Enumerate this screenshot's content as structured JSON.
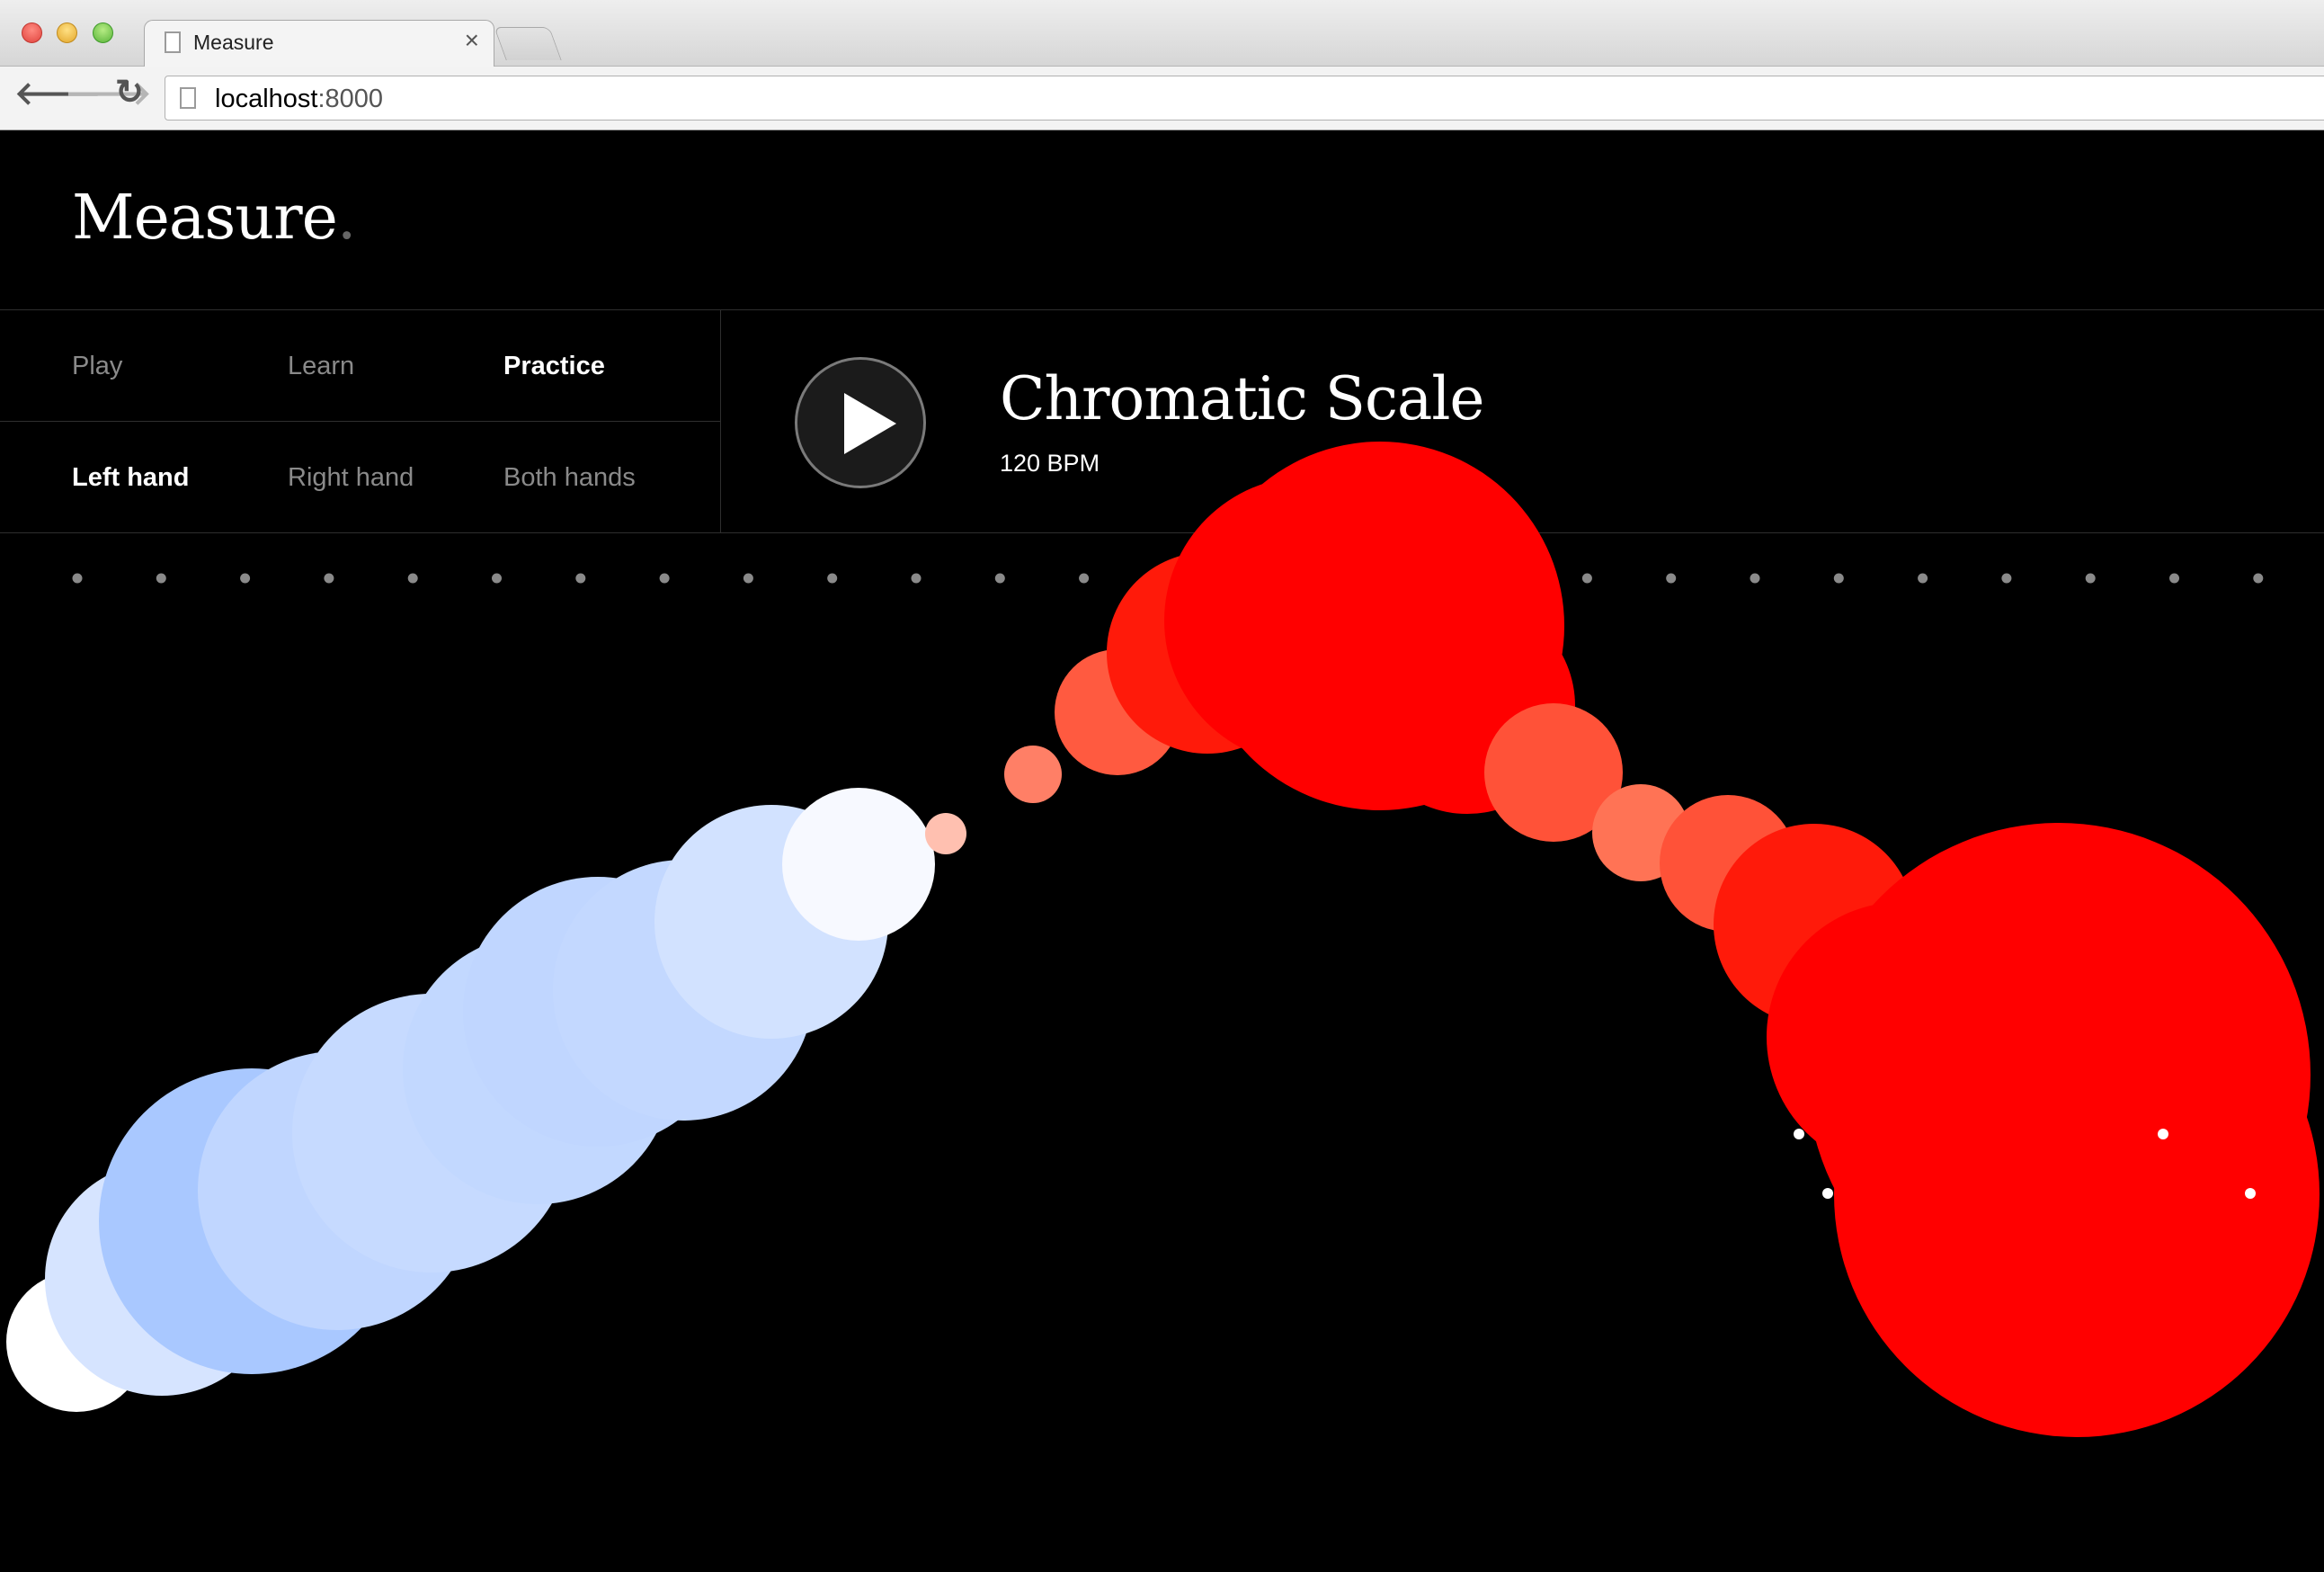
{
  "browser": {
    "tab_title": "Measure",
    "url_host": "localhost",
    "url_port": ":8000"
  },
  "app": {
    "logo": "Measure",
    "logo_dot": "."
  },
  "modes": [
    {
      "label": "Play",
      "active": false
    },
    {
      "label": "Learn",
      "active": false
    },
    {
      "label": "Practice",
      "active": true
    }
  ],
  "hands": [
    {
      "label": "Left hand",
      "active": true
    },
    {
      "label": "Right hand",
      "active": false
    },
    {
      "label": "Both hands",
      "active": false
    }
  ],
  "piece": {
    "title": "Chromatic Scale",
    "tempo": "120 BPM"
  },
  "icons": {
    "play": "play-icon",
    "back": "back-arrow-icon",
    "forward": "forward-arrow-icon",
    "reload": "reload-icon",
    "page": "page-icon",
    "close": "close-icon"
  },
  "colors": {
    "background": "#000000",
    "early_note": "#ff0000",
    "late_note": "#b4d0ff",
    "beat_marker": "#8a8a8a"
  }
}
